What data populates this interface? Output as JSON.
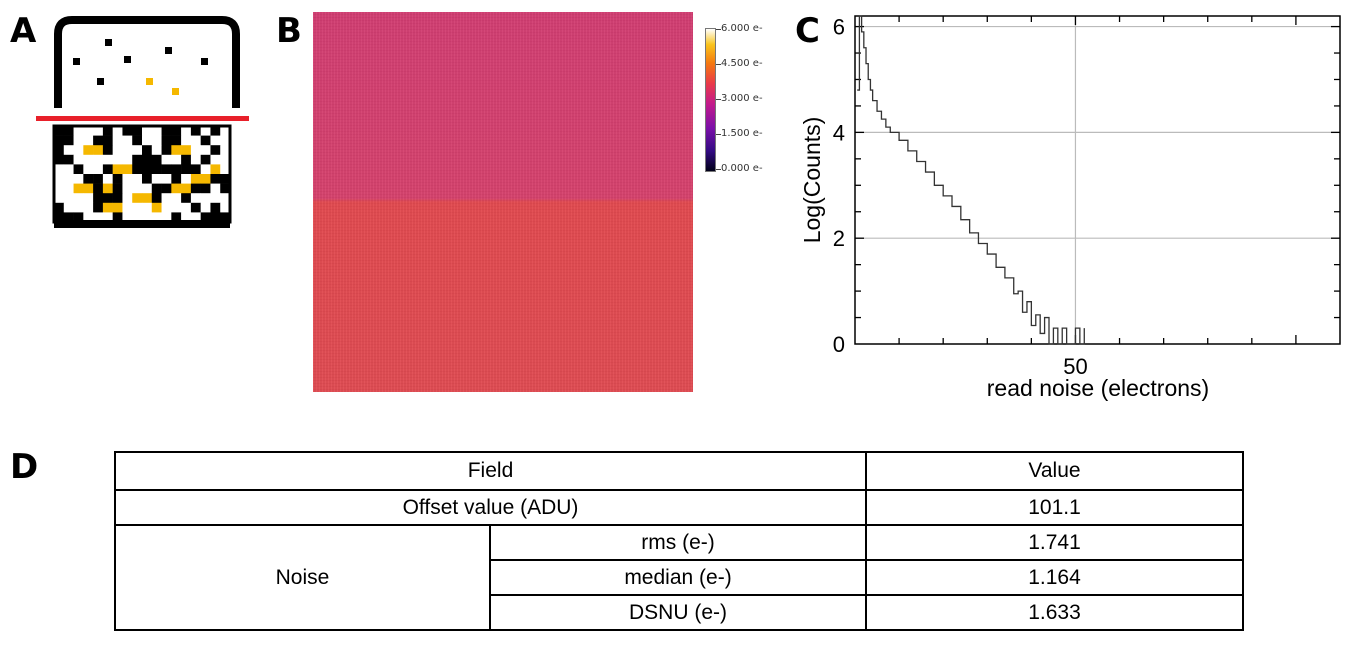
{
  "panel_labels": {
    "a": "A",
    "b": "B",
    "c": "C",
    "d": "D"
  },
  "panel_a": {
    "description_icon": "sensor-photon-diagram",
    "colors": {
      "black": "#000000",
      "yellow": "#f5b800",
      "red_line": "#e8202a"
    }
  },
  "panel_b": {
    "colorbar_labels": [
      "6.000 e-",
      "4.500 e-",
      "3.000 e-",
      "1.500 e-",
      "0.000 e-"
    ],
    "colorbar_range": [
      0,
      6
    ],
    "image_colors": {
      "top_half": "#d43f6e",
      "bottom_half": "#e14a52"
    }
  },
  "chart_data": {
    "type": "line",
    "title": "",
    "xlabel": "read noise (electrons)",
    "ylabel": "Log(Counts)",
    "x_tick_labels": [
      "50"
    ],
    "y_tick_labels": [
      "0",
      "2",
      "4",
      "6"
    ],
    "xlim": [
      0,
      110
    ],
    "ylim": [
      0,
      6.2
    ],
    "grid": true,
    "series": [
      {
        "x": [
          0.5,
          1,
          1.5,
          2,
          2.5,
          3,
          3.5,
          4,
          5,
          6,
          7,
          8,
          10,
          12,
          14,
          16,
          18,
          20,
          22,
          24,
          26,
          28,
          30,
          32,
          34,
          36,
          37,
          38,
          39,
          40,
          41,
          42,
          43,
          44,
          45,
          46,
          47,
          48,
          49,
          50,
          51,
          52
        ],
        "y": [
          4.8,
          6.2,
          5.9,
          5.6,
          5.3,
          5.0,
          4.8,
          4.6,
          4.4,
          4.25,
          4.1,
          4.0,
          3.85,
          3.65,
          3.45,
          3.25,
          3.0,
          2.8,
          2.6,
          2.35,
          2.1,
          1.9,
          1.7,
          1.45,
          1.25,
          0.95,
          1.0,
          0.6,
          0.8,
          0.35,
          0.55,
          0.2,
          0.5,
          0.0,
          0.3,
          0.0,
          0.3,
          0.0,
          0.0,
          0.3,
          0.0,
          0.3
        ]
      }
    ]
  },
  "table": {
    "header": {
      "field": "Field",
      "value": "Value"
    },
    "offset": {
      "label": "Offset value (ADU)",
      "value": "101.1"
    },
    "noise": {
      "label": "Noise",
      "rows": [
        {
          "label": "rms (e-)",
          "value": "1.741"
        },
        {
          "label": "median (e-)",
          "value": "1.164"
        },
        {
          "label": "DSNU (e-)",
          "value": "1.633"
        }
      ]
    }
  }
}
